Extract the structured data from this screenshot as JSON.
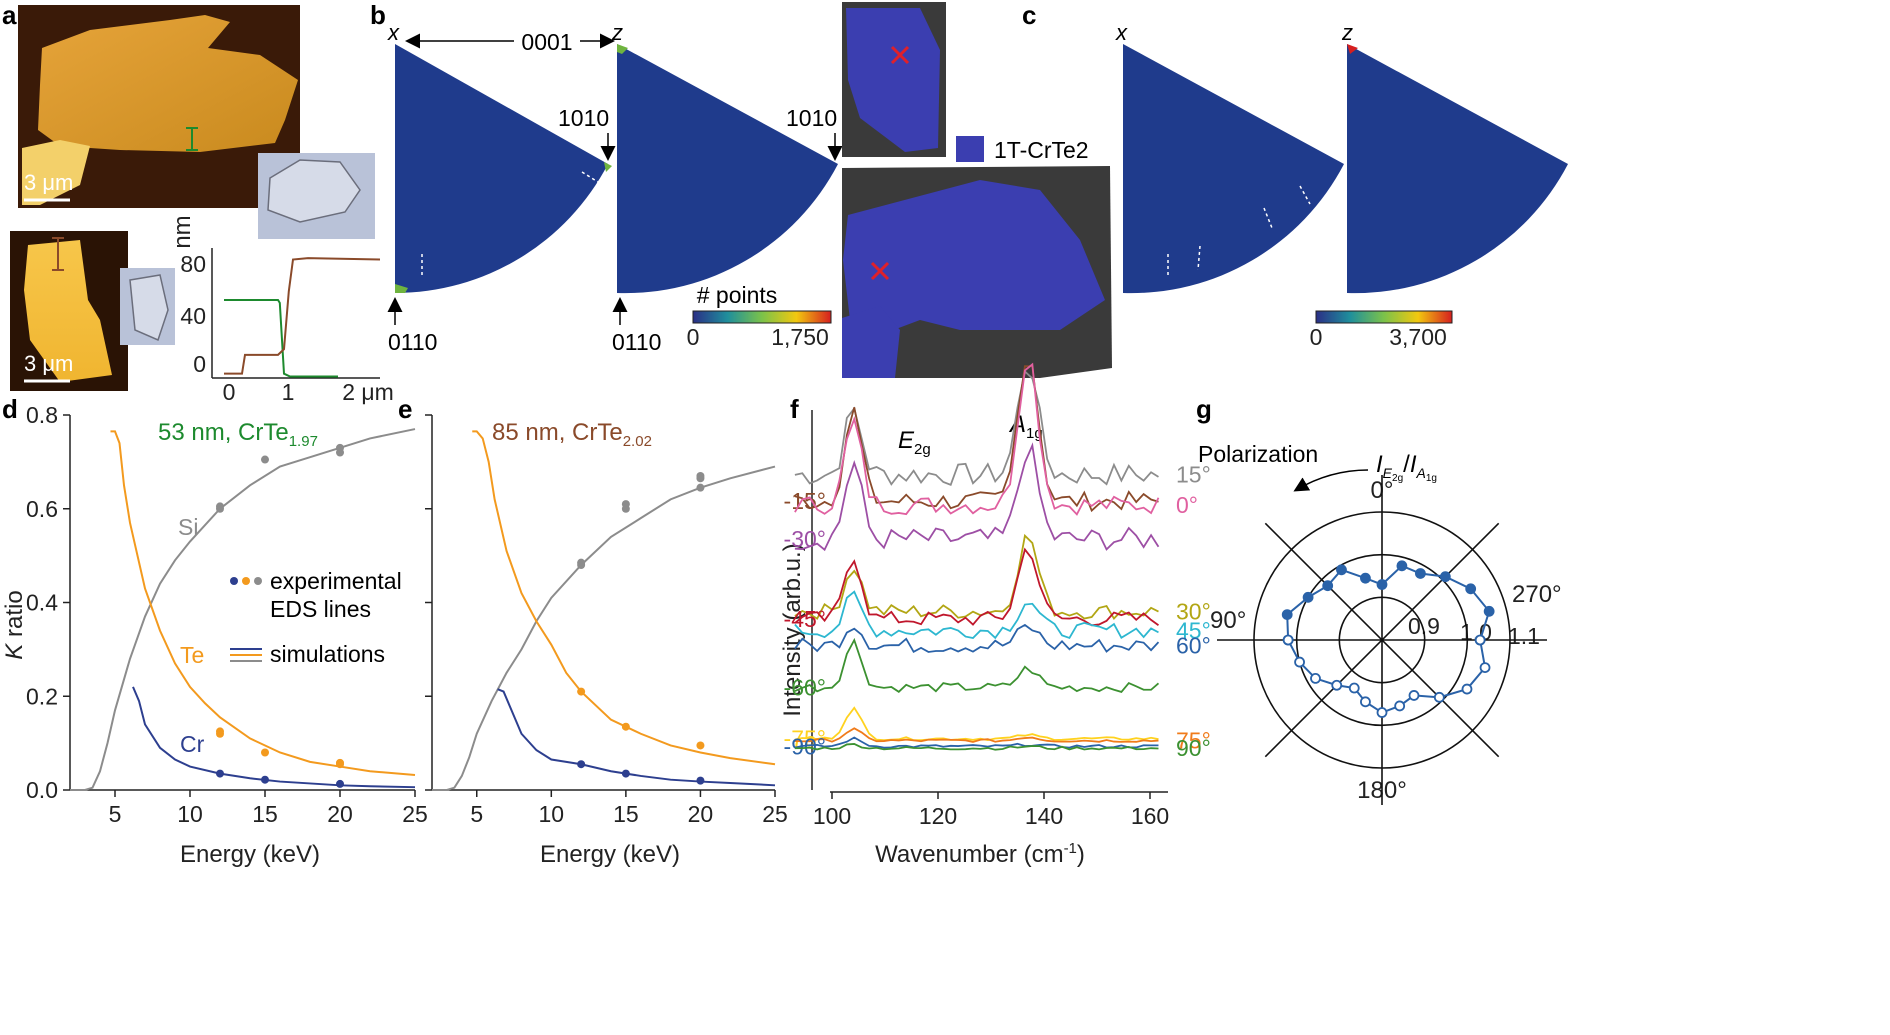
{
  "panels": {
    "a": {
      "label": "a",
      "scale_bar_top": "3 μm",
      "scale_bar_bottom": "3 μm",
      "profile_ylabel": "nm",
      "profile_yticks": [
        "0",
        "40",
        "80"
      ],
      "profile_xticks": [
        "0",
        "1",
        "2 μm"
      ],
      "profile_ylim": [
        0,
        90
      ],
      "profile_xlim": [
        -0.2,
        2.6
      ],
      "profile_green": [
        [
          0,
          54
        ],
        [
          0.9,
          54
        ],
        [
          0.93,
          52
        ],
        [
          1.0,
          3
        ],
        [
          1.1,
          1
        ],
        [
          1.9,
          1
        ]
      ],
      "profile_brown": [
        [
          0,
          3
        ],
        [
          0.3,
          3
        ],
        [
          0.35,
          16
        ],
        [
          0.9,
          16
        ],
        [
          1.0,
          20
        ],
        [
          1.08,
          60
        ],
        [
          1.15,
          82
        ],
        [
          1.4,
          83
        ],
        [
          2.6,
          82
        ]
      ]
    },
    "b": {
      "label": "b",
      "ipf_x_label": "x",
      "ipf_z_label": "z",
      "pole_0001": "0001",
      "pole_10m10": "1010",
      "pole_01m10": "0110",
      "colorbar_title": "# points",
      "colorbar_min": "0",
      "colorbar_max": "1,750",
      "phase_legend": "1T-CrTe2",
      "phase_color": "#3b3eb0"
    },
    "c": {
      "label": "c",
      "ipf_x_label": "x",
      "ipf_z_label": "z",
      "colorbar_min": "0",
      "colorbar_max": "3,700"
    },
    "g": {
      "label": "g",
      "polarization_label": "Polarization",
      "ratio_label": "I",
      "ratio_sub1": "E",
      "ratio_sub2": "2g",
      "ratio_sub3": "A",
      "ratio_sub4": "1g",
      "angle_labels": [
        "0°",
        "90°",
        "180°",
        "270°"
      ],
      "ring_labels": [
        "0.9",
        "1.0",
        "1.1"
      ]
    }
  },
  "chart_data": [
    {
      "panel": "d",
      "type": "line",
      "title": "53 nm, CrTe1.97",
      "title_main": "53 nm, CrTe",
      "title_sub": "1.97",
      "xlabel": "Energy (keV)",
      "ylabel_italic": "K",
      "ylabel_rest": " ratio",
      "xlim": [
        2,
        25
      ],
      "ylim": [
        0,
        0.8
      ],
      "xticks": [
        5,
        10,
        15,
        20,
        25
      ],
      "yticks": [
        0.0,
        0.2,
        0.4,
        0.6,
        0.8
      ],
      "ytick_labels": [
        "0.0",
        "0.2",
        "0.4",
        "0.6",
        "0.8"
      ],
      "series_labels": {
        "Si": "Si",
        "Te": "Te",
        "Cr": "Cr"
      },
      "legend_points": "experimental",
      "legend_points2": "EDS lines",
      "legend_lines": "simulations",
      "series": [
        {
          "name": "Si",
          "color": "#8c8c8c",
          "x": [
            2,
            3,
            3.5,
            4,
            4.5,
            5,
            6,
            7,
            8,
            9,
            10,
            12,
            14,
            16,
            18,
            20,
            22,
            25
          ],
          "y": [
            0.0,
            0.0,
            0.005,
            0.04,
            0.1,
            0.17,
            0.28,
            0.37,
            0.44,
            0.49,
            0.53,
            0.6,
            0.65,
            0.69,
            0.71,
            0.73,
            0.75,
            0.77
          ],
          "points_x": [
            12,
            12,
            15,
            20,
            20
          ],
          "points_y": [
            0.6,
            0.605,
            0.705,
            0.72,
            0.73
          ]
        },
        {
          "name": "Te",
          "color": "#f39a1e",
          "x": [
            4.7,
            5,
            5.3,
            5.6,
            6,
            7,
            8,
            9,
            10,
            11,
            12,
            14,
            16,
            18,
            20,
            22,
            25
          ],
          "y": [
            0.765,
            0.765,
            0.74,
            0.65,
            0.57,
            0.43,
            0.34,
            0.27,
            0.22,
            0.185,
            0.155,
            0.11,
            0.08,
            0.06,
            0.05,
            0.04,
            0.032
          ],
          "points_x": [
            12,
            12,
            15,
            20,
            20
          ],
          "points_y": [
            0.12,
            0.125,
            0.08,
            0.055,
            0.058
          ]
        },
        {
          "name": "Cr",
          "color": "#2d3f8f",
          "x": [
            6.2,
            6.6,
            7,
            8,
            9,
            10,
            12,
            14,
            16,
            18,
            20,
            22,
            25
          ],
          "y": [
            0.22,
            0.19,
            0.14,
            0.09,
            0.065,
            0.05,
            0.035,
            0.025,
            0.018,
            0.014,
            0.01,
            0.008,
            0.006
          ],
          "points_x": [
            12,
            15,
            20
          ],
          "points_y": [
            0.035,
            0.022,
            0.013
          ]
        }
      ]
    },
    {
      "panel": "e",
      "type": "line",
      "title": "85 nm, CrTe2.02",
      "title_main": "85 nm, CrTe",
      "title_sub": "2.02",
      "xlabel": "Energy (keV)",
      "xlim": [
        2,
        25
      ],
      "ylim": [
        0,
        0.8
      ],
      "xticks": [
        5,
        10,
        15,
        20,
        25
      ],
      "series": [
        {
          "name": "Si",
          "color": "#8c8c8c",
          "x": [
            2,
            3,
            3.5,
            4,
            4.5,
            5,
            6,
            7,
            8,
            9,
            10,
            12,
            14,
            16,
            18,
            20,
            22,
            25
          ],
          "y": [
            0.0,
            0.0,
            0.005,
            0.03,
            0.07,
            0.12,
            0.19,
            0.25,
            0.3,
            0.36,
            0.41,
            0.48,
            0.54,
            0.58,
            0.62,
            0.645,
            0.665,
            0.69
          ],
          "points_x": [
            12,
            12,
            15,
            15,
            20,
            20,
            20
          ],
          "points_y": [
            0.48,
            0.485,
            0.6,
            0.61,
            0.645,
            0.665,
            0.67
          ]
        },
        {
          "name": "Te",
          "color": "#f39a1e",
          "x": [
            4.7,
            5,
            5.4,
            5.8,
            6.2,
            7,
            8,
            9,
            10,
            11,
            12,
            14,
            16,
            18,
            20,
            22,
            25
          ],
          "y": [
            0.765,
            0.765,
            0.75,
            0.7,
            0.62,
            0.51,
            0.42,
            0.36,
            0.31,
            0.25,
            0.21,
            0.15,
            0.12,
            0.095,
            0.08,
            0.068,
            0.055
          ],
          "points_x": [
            12,
            15,
            20
          ],
          "points_y": [
            0.21,
            0.135,
            0.095
          ]
        },
        {
          "name": "Cr",
          "color": "#2d3f8f",
          "x": [
            6.4,
            6.8,
            7.2,
            8,
            9,
            10,
            12,
            14,
            16,
            18,
            20,
            22,
            25
          ],
          "y": [
            0.215,
            0.21,
            0.18,
            0.12,
            0.085,
            0.065,
            0.055,
            0.04,
            0.03,
            0.022,
            0.018,
            0.015,
            0.01
          ],
          "points_x": [
            12,
            15,
            20
          ],
          "points_y": [
            0.055,
            0.035,
            0.02
          ]
        }
      ]
    },
    {
      "panel": "f",
      "type": "line",
      "xlabel": "Wavenumber (cm-1)",
      "xlabel_main": "Wavenumber (cm",
      "xlabel_sup": "-1",
      "xlabel_close": ")",
      "ylabel": "Intensity (arb.u.)",
      "xlim": [
        92,
        165
      ],
      "xticks": [
        100,
        120,
        140,
        160
      ],
      "peak1_main": "E",
      "peak1_sub": "2g",
      "peak2_main": "A",
      "peak2_sub": "1g",
      "peak_positions": [
        104,
        137
      ],
      "series": [
        {
          "label": "15°",
          "side": "right",
          "color": "#8c8c8c",
          "offset": 0.83,
          "amp1": 0.17,
          "amp2": 0.3,
          "noise": 0.03
        },
        {
          "label": "-15°",
          "side": "left",
          "color": "#8a4a2a",
          "offset": 0.76,
          "amp1": 0.24,
          "amp2": 0.4,
          "noise": 0.025
        },
        {
          "label": "0°",
          "side": "right",
          "color": "#e060a0",
          "offset": 0.75,
          "amp1": 0.22,
          "amp2": 0.4,
          "noise": 0.025
        },
        {
          "label": "-30°",
          "side": "left",
          "color": "#9d4fa5",
          "offset": 0.66,
          "amp1": 0.2,
          "amp2": 0.24,
          "noise": 0.03
        },
        {
          "label": "30°",
          "side": "right",
          "color": "#b2a614",
          "offset": 0.47,
          "amp1": 0.12,
          "amp2": 0.2,
          "noise": 0.02
        },
        {
          "label": "-45°",
          "side": "left",
          "color": "#c0172c",
          "offset": 0.45,
          "amp1": 0.17,
          "amp2": 0.19,
          "noise": 0.02
        },
        {
          "label": "45°",
          "side": "right",
          "color": "#2db7d0",
          "offset": 0.42,
          "amp1": 0.09,
          "amp2": 0.08,
          "noise": 0.02
        },
        {
          "label": "60°",
          "side": "right",
          "color": "#2a62a8",
          "offset": 0.38,
          "amp1": 0.06,
          "amp2": 0.05,
          "noise": 0.02
        },
        {
          "label": "-60°",
          "side": "left",
          "color": "#3c9131",
          "offset": 0.27,
          "amp1": 0.12,
          "amp2": 0.05,
          "noise": 0.012
        },
        {
          "label": "-75°",
          "side": "left",
          "color": "#ffd21f",
          "offset": 0.135,
          "amp1": 0.08,
          "amp2": 0.01,
          "noise": 0.004
        },
        {
          "label": "75°",
          "side": "right",
          "color": "#f07b1a",
          "offset": 0.13,
          "amp1": 0.03,
          "amp2": 0.01,
          "noise": 0.004
        },
        {
          "label": "-90°",
          "side": "left",
          "color": "#2a62a8",
          "offset": 0.115,
          "amp1": 0.02,
          "amp2": 0.005,
          "noise": 0.004
        },
        {
          "label": "90°",
          "side": "right",
          "color": "#3c9131",
          "offset": 0.11,
          "amp1": 0.01,
          "amp2": 0.005,
          "noise": 0.004
        }
      ]
    },
    {
      "panel": "g",
      "type": "scatter",
      "polar": true,
      "rlim": [
        0.8,
        1.1
      ],
      "rings": [
        0.9,
        1.0,
        1.1
      ],
      "color": "#2a62a8",
      "filled": {
        "angles_deg": [
          90,
          75,
          60,
          45,
          30,
          15,
          0,
          -15,
          -30,
          -45,
          -60,
          -75,
          -90
        ],
        "r": [
          1.02,
          1.03,
          1.0,
          0.98,
          0.99,
          0.95,
          0.93,
          0.98,
          0.98,
          1.01,
          1.04,
          1.06,
          1.03
        ]
      },
      "open": {
        "angles_deg": [
          90,
          105,
          120,
          135,
          150,
          165,
          180,
          195,
          210,
          225,
          240,
          255,
          270
        ],
        "r": [
          1.02,
          1.0,
          0.98,
          0.95,
          0.93,
          0.95,
          0.97,
          0.96,
          0.95,
          0.99,
          1.03,
          1.05,
          1.03
        ]
      }
    }
  ]
}
